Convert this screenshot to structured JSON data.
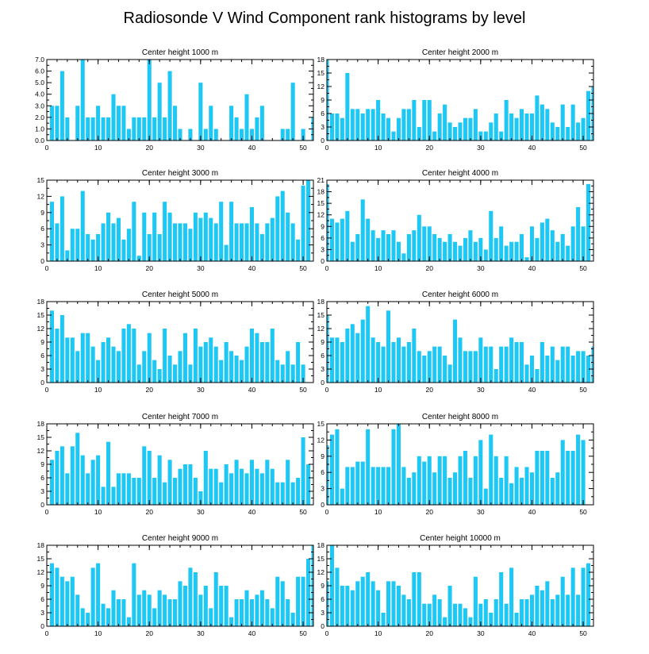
{
  "chart_data": {
    "title": "Radiosonde V Wind Component rank histograms by level",
    "type": "bar",
    "bar_color": "#1ec8f5",
    "xlim": [
      0,
      52
    ],
    "x_ticks": [
      0,
      10,
      20,
      30,
      40,
      50
    ],
    "panels": [
      {
        "title": "Center height 1000 m",
        "ylim": [
          0,
          7
        ],
        "y_ticks": [
          "0.0",
          "1.0",
          "2.0",
          "3.0",
          "4.0",
          "5.0",
          "6.0",
          "7.0"
        ],
        "values": [
          0,
          3,
          3,
          6,
          2,
          0,
          3,
          7,
          2,
          2,
          3,
          2,
          2,
          4,
          3,
          3,
          1,
          2,
          2,
          2,
          7,
          2,
          5,
          2,
          6,
          3,
          1,
          0,
          1,
          0,
          5,
          1,
          3,
          1,
          0,
          0,
          3,
          2,
          1,
          4,
          1,
          2,
          3,
          0,
          0,
          0,
          1,
          1,
          5,
          0,
          1,
          0,
          2
        ]
      },
      {
        "title": "Center height 2000 m",
        "ylim": [
          0,
          18
        ],
        "y_ticks": [
          "0",
          "3",
          "6",
          "9",
          "12",
          "15",
          "18"
        ],
        "values": [
          18,
          6,
          6,
          5,
          15,
          7,
          7,
          6,
          7,
          7,
          9,
          6,
          5,
          2,
          5,
          7,
          7,
          9,
          3,
          9,
          9,
          2,
          6,
          8,
          4,
          3,
          4,
          5,
          5,
          7,
          2,
          2,
          4,
          6,
          2,
          9,
          6,
          5,
          7,
          6,
          6,
          10,
          8,
          7,
          4,
          3,
          8,
          3,
          8,
          4,
          5,
          11,
          12
        ]
      },
      {
        "title": "Center height 3000 m",
        "ylim": [
          0,
          15
        ],
        "y_ticks": [
          "0",
          "3",
          "6",
          "9",
          "12",
          "15"
        ],
        "values": [
          0,
          11,
          7,
          12,
          2,
          6,
          6,
          13,
          5,
          4,
          5,
          7,
          9,
          7,
          8,
          4,
          6,
          11,
          1,
          9,
          5,
          9,
          5,
          11,
          9,
          7,
          7,
          7,
          6,
          9,
          8,
          9,
          8,
          7,
          11,
          3,
          11,
          7,
          7,
          7,
          10,
          7,
          5,
          7,
          8,
          12,
          13,
          9,
          7,
          4,
          14,
          15,
          0
        ]
      },
      {
        "title": "Center height 4000 m",
        "ylim": [
          0,
          21
        ],
        "y_ticks": [
          "0",
          "3",
          "6",
          "9",
          "12",
          "15",
          "18",
          "21"
        ],
        "values": [
          20,
          11,
          10,
          11,
          13,
          5,
          7,
          16,
          11,
          8,
          6,
          8,
          7,
          8,
          5,
          2,
          7,
          8,
          12,
          9,
          9,
          7,
          6,
          5,
          7,
          5,
          4,
          6,
          8,
          5,
          6,
          3,
          13,
          6,
          9,
          4,
          5,
          5,
          7,
          1,
          9,
          6,
          10,
          11,
          8,
          5,
          7,
          4,
          9,
          14,
          9,
          20,
          0
        ]
      },
      {
        "title": "Center height 5000 m",
        "ylim": [
          0,
          18
        ],
        "y_ticks": [
          "0",
          "3",
          "6",
          "9",
          "12",
          "15",
          "18"
        ],
        "values": [
          0,
          16,
          12,
          15,
          10,
          10,
          7,
          11,
          11,
          8,
          5,
          9,
          10,
          8,
          7,
          12,
          13,
          12,
          4,
          7,
          11,
          5,
          3,
          12,
          6,
          4,
          7,
          11,
          4,
          12,
          8,
          9,
          10,
          8,
          5,
          9,
          7,
          6,
          5,
          8,
          12,
          11,
          9,
          9,
          12,
          5,
          4,
          7,
          4,
          9,
          4,
          0,
          0
        ]
      },
      {
        "title": "Center height 6000 m",
        "ylim": [
          0,
          18
        ],
        "y_ticks": [
          "0",
          "3",
          "6",
          "9",
          "12",
          "15",
          "18"
        ],
        "values": [
          15,
          10,
          10,
          9,
          12,
          13,
          11,
          14,
          17,
          10,
          9,
          8,
          16,
          9,
          10,
          8,
          9,
          12,
          7,
          6,
          7,
          8,
          8,
          6,
          4,
          14,
          10,
          7,
          7,
          7,
          10,
          8,
          8,
          3,
          8,
          8,
          10,
          9,
          9,
          4,
          6,
          3,
          9,
          6,
          8,
          5,
          8,
          8,
          6,
          7,
          7,
          6,
          8
        ]
      },
      {
        "title": "Center height 7000 m",
        "ylim": [
          0,
          18
        ],
        "y_ticks": [
          "0",
          "3",
          "6",
          "9",
          "12",
          "15",
          "18"
        ],
        "values": [
          0,
          10,
          12,
          13,
          7,
          13,
          16,
          11,
          7,
          10,
          11,
          4,
          14,
          4,
          7,
          7,
          7,
          6,
          6,
          13,
          12,
          6,
          11,
          5,
          10,
          6,
          8,
          9,
          9,
          6,
          3,
          12,
          8,
          8,
          5,
          9,
          7,
          10,
          8,
          7,
          10,
          8,
          7,
          10,
          8,
          5,
          5,
          10,
          5,
          6,
          15,
          9,
          0
        ]
      },
      {
        "title": "Center height 8000 m",
        "ylim": [
          0,
          15
        ],
        "y_ticks": [
          "0",
          "3",
          "6",
          "9",
          "12",
          "15"
        ],
        "values": [
          11,
          13,
          14,
          3,
          7,
          7,
          8,
          8,
          14,
          7,
          7,
          7,
          7,
          14,
          15,
          7,
          5,
          6,
          9,
          8,
          9,
          6,
          9,
          9,
          5,
          6,
          9,
          10,
          5,
          9,
          12,
          3,
          13,
          9,
          5,
          9,
          4,
          7,
          5,
          7,
          6,
          10,
          10,
          10,
          5,
          6,
          12,
          10,
          10,
          13,
          12,
          0,
          0
        ]
      },
      {
        "title": "Center height 9000 m",
        "ylim": [
          0,
          18
        ],
        "y_ticks": [
          "0",
          "3",
          "6",
          "9",
          "12",
          "15",
          "18"
        ],
        "values": [
          0,
          14,
          13,
          11,
          10,
          11,
          7,
          4,
          3,
          13,
          14,
          5,
          4,
          8,
          6,
          6,
          2,
          14,
          7,
          8,
          7,
          4,
          8,
          7,
          6,
          6,
          10,
          9,
          13,
          12,
          7,
          9,
          4,
          12,
          9,
          9,
          2,
          6,
          6,
          8,
          6,
          7,
          8,
          6,
          4,
          11,
          10,
          6,
          3,
          11,
          11,
          15,
          18
        ]
      },
      {
        "title": "Center height 10000 m",
        "ylim": [
          0,
          18
        ],
        "y_ticks": [
          "0",
          "3",
          "6",
          "9",
          "12",
          "15",
          "18"
        ],
        "values": [
          10,
          18,
          13,
          9,
          9,
          8,
          10,
          11,
          12,
          10,
          8,
          3,
          10,
          10,
          9,
          7,
          6,
          12,
          12,
          5,
          5,
          7,
          6,
          2,
          9,
          5,
          5,
          4,
          2,
          11,
          5,
          6,
          3,
          6,
          12,
          5,
          13,
          3,
          6,
          6,
          7,
          9,
          8,
          10,
          6,
          7,
          11,
          7,
          13,
          7,
          13,
          14,
          0
        ]
      }
    ]
  }
}
